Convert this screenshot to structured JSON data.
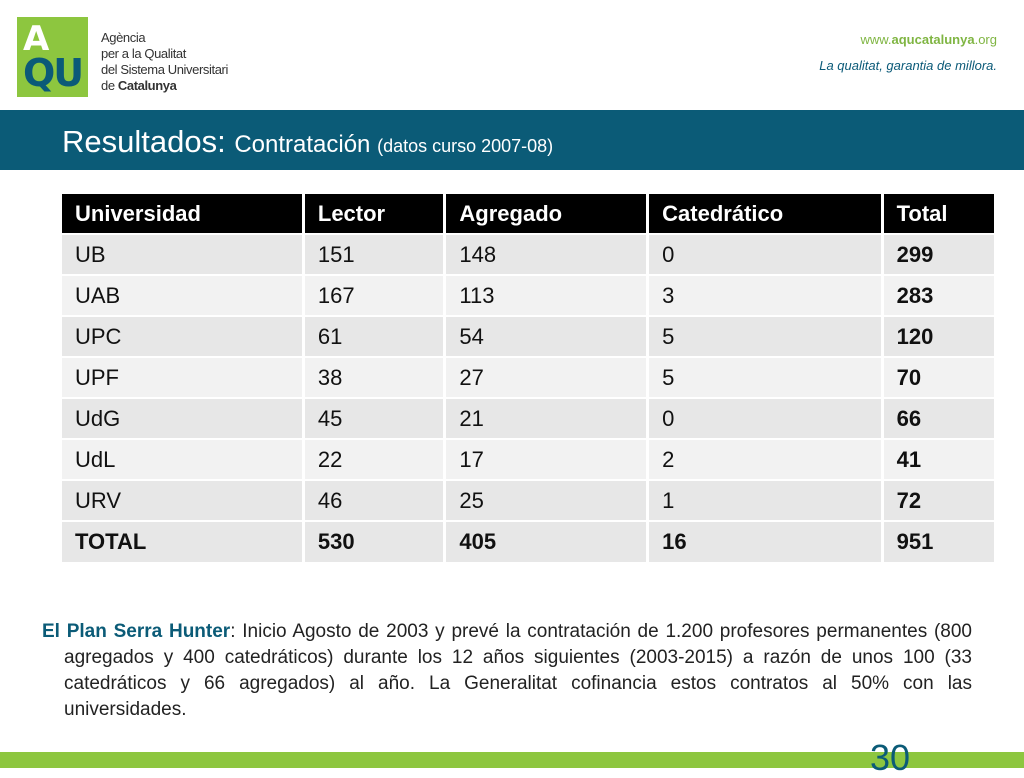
{
  "header": {
    "logo_line1": "A",
    "logo_line2": "QU",
    "agency_lines": [
      "Agència",
      "per a la Qualitat",
      "del Sistema Universitari"
    ],
    "agency_last_prefix": "de ",
    "agency_last_bold": "Catalunya",
    "site_prefix": "www.",
    "site_bold": "aqucatalunya",
    "site_suffix": ".org",
    "tagline": "La qualitat, garantia de millora."
  },
  "title": {
    "main": "Resultados: ",
    "sub": "Contratación ",
    "note": "(datos curso 2007-08)"
  },
  "table": {
    "headers": [
      "Universidad",
      "Lector",
      "Agregado",
      "Catedrático",
      "Total"
    ],
    "rows": [
      [
        "UB",
        "151",
        "148",
        "0",
        "299"
      ],
      [
        "UAB",
        "167",
        "113",
        "3",
        "283"
      ],
      [
        "UPC",
        "61",
        "54",
        "5",
        "120"
      ],
      [
        "UPF",
        "38",
        "27",
        "5",
        "70"
      ],
      [
        "UdG",
        "45",
        "21",
        "0",
        "66"
      ],
      [
        "UdL",
        "22",
        "17",
        "2",
        "41"
      ],
      [
        "URV",
        "46",
        "25",
        "1",
        "72"
      ],
      [
        "TOTAL",
        "530",
        "405",
        "16",
        "951"
      ]
    ]
  },
  "paragraph": {
    "plan_name": "El Plan Serra Hunter",
    "text": ": Inicio Agosto de 2003 y prevé la contratación de 1.200  profesores permanentes (800 agregados y 400 catedráticos) durante los 12 años siguientes (2003-2015) a razón de unos 100 (33 catedráticos y 66 agregados) al año. La Generalitat cofinancia estos contratos al 50% con las universidades."
  },
  "footer": {
    "page_number": "30"
  },
  "colors": {
    "brand_green": "#8dc63f",
    "brand_blue": "#0b5b77"
  }
}
